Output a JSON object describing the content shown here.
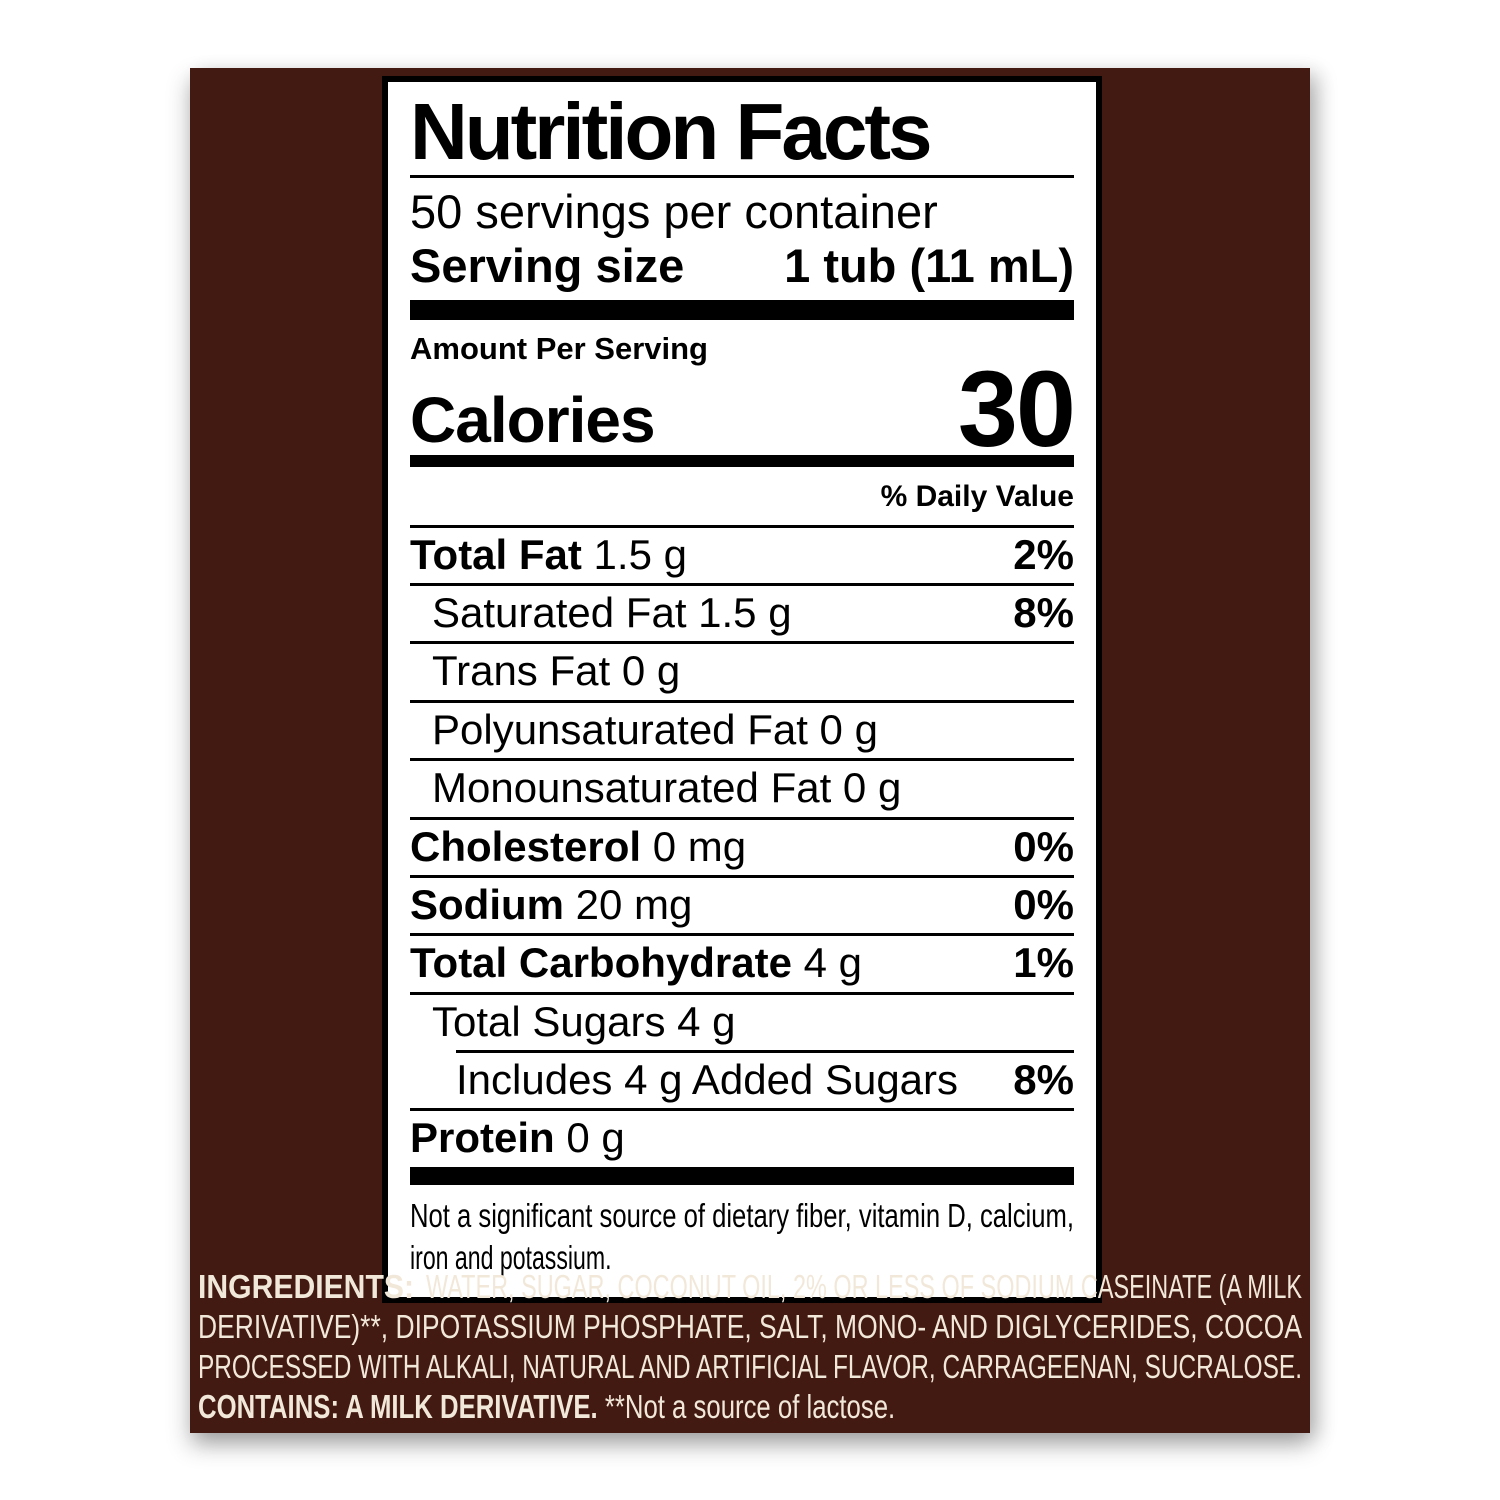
{
  "panel": {
    "title": "Nutrition Facts",
    "servings_per_container": "50 servings per container",
    "serving_size_label": "Serving size",
    "serving_size_value": "1 tub (11 mL)",
    "amount_per_serving": "Amount Per Serving",
    "calories_label": "Calories",
    "calories_value": "30",
    "daily_value_header": "% Daily Value",
    "rows": [
      {
        "name": "Total Fat",
        "amount": "1.5 g",
        "dv": "2%",
        "bold": true,
        "indent": 0
      },
      {
        "name": "Saturated Fat",
        "amount": "1.5 g",
        "dv": "8%",
        "bold": false,
        "indent": 1
      },
      {
        "name": "Trans Fat",
        "amount": "0 g",
        "dv": "",
        "bold": false,
        "indent": 1
      },
      {
        "name": "Polyunsaturated Fat",
        "amount": "0 g",
        "dv": "",
        "bold": false,
        "indent": 1
      },
      {
        "name": "Monounsaturated Fat",
        "amount": "0 g",
        "dv": "",
        "bold": false,
        "indent": 1
      },
      {
        "name": "Cholesterol",
        "amount": "0 mg",
        "dv": "0%",
        "bold": true,
        "indent": 0
      },
      {
        "name": "Sodium",
        "amount": "20 mg",
        "dv": "0%",
        "bold": true,
        "indent": 0
      },
      {
        "name": "Total Carbohydrate",
        "amount": "4 g",
        "dv": "1%",
        "bold": true,
        "indent": 0
      },
      {
        "name": "Total Sugars",
        "amount": "4 g",
        "dv": "",
        "bold": false,
        "indent": 1
      },
      {
        "name": "Includes 4 g Added Sugars",
        "amount": "",
        "dv": "8%",
        "bold": false,
        "indent": 2,
        "divider_indent": true
      },
      {
        "name": "Protein",
        "amount": "0 g",
        "dv": "",
        "bold": true,
        "indent": 0
      }
    ],
    "footnote_line1": "Not a significant source of dietary fiber, vitamin D, calcium,",
    "footnote_line2": "iron and potassium."
  },
  "ingredients": {
    "line1_label": "INGREDIENTS:",
    "line1_rest": "WATER, SUGAR, COCONUT OIL, 2% OR LESS OF SODIUM CASEINATE (A MILK",
    "line2": "DERIVATIVE)**, DIPOTASSIUM PHOSPHATE, SALT, MONO- AND DIGLYCERIDES, COCOA",
    "line3": "PROCESSED WITH ALKALI, NATURAL AND ARTIFICIAL FLAVOR, CARRAGEENAN, SUCRALOSE.",
    "contains_label": "CONTAINS: A MILK DERIVATIVE.",
    "contains_note": " **Not a source of lactose."
  },
  "colors": {
    "package_brown": "#431a12",
    "label_background": "#ffffff",
    "label_text": "#000000",
    "ingredient_text": "#f2e8da"
  }
}
